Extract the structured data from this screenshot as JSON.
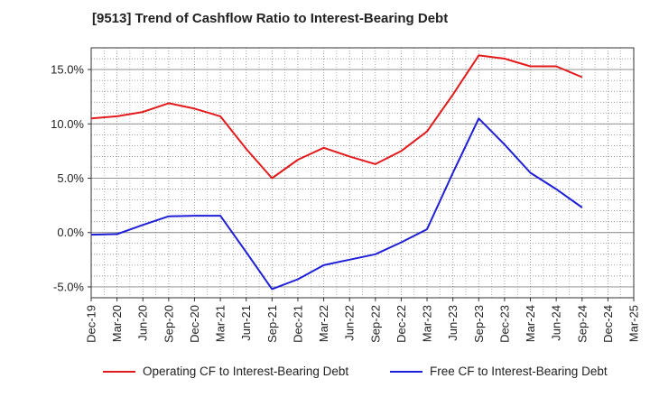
{
  "title": "[9513]  Trend of Cashflow Ratio to Interest-Bearing Debt",
  "colors": {
    "operating": "#e31a1c",
    "free": "#1f1fd6",
    "grid": "#888888"
  },
  "chart_data": {
    "type": "line",
    "title": "[9513]  Trend of Cashflow Ratio to Interest-Bearing Debt",
    "xlabel": "",
    "ylabel": "",
    "categories": [
      "Dec-19",
      "Mar-20",
      "Jun-20",
      "Sep-20",
      "Dec-20",
      "Mar-21",
      "Jun-21",
      "Sep-21",
      "Dec-21",
      "Mar-22",
      "Jun-22",
      "Sep-22",
      "Dec-22",
      "Mar-23",
      "Jun-23",
      "Sep-23",
      "Dec-23",
      "Mar-24",
      "Jun-24",
      "Sep-24",
      "Dec-24",
      "Mar-25"
    ],
    "ylim": [
      -6,
      17
    ],
    "yticks": [
      -5,
      0,
      5,
      10,
      15
    ],
    "ytick_labels": [
      "-5.0%",
      "0.0%",
      "5.0%",
      "10.0%",
      "15.0%"
    ],
    "grid": true,
    "legend_position": "bottom",
    "series": [
      {
        "name": "Operating CF to Interest-Bearing Debt",
        "color": "#e31a1c",
        "values": [
          10.5,
          10.7,
          11.1,
          11.9,
          11.4,
          10.7,
          7.7,
          5.0,
          6.7,
          7.8,
          7.0,
          6.3,
          7.5,
          9.3,
          12.7,
          16.3,
          16.0,
          15.3,
          15.3,
          14.3,
          null,
          null
        ]
      },
      {
        "name": "Free CF to Interest-Bearing Debt",
        "color": "#1f1fd6",
        "values": [
          -0.2,
          -0.15,
          0.7,
          1.5,
          1.55,
          1.55,
          -1.8,
          -5.2,
          -4.3,
          -3.0,
          -2.5,
          -2.0,
          -0.9,
          0.3,
          5.5,
          10.5,
          8.1,
          5.5,
          4.0,
          2.3,
          null,
          null
        ]
      }
    ]
  }
}
